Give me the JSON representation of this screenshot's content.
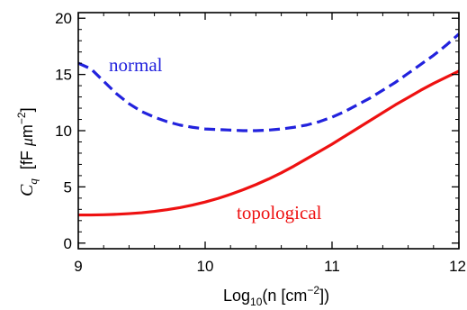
{
  "chart_data": {
    "type": "line",
    "xlabel": {
      "prefix": "Log",
      "subscript": "10",
      "middle": "(n [cm",
      "superscript": "−2",
      "suffix": "])"
    },
    "ylabel": {
      "symbol": "C",
      "symbol_sub": "q",
      "unit_prefix": "[fF ",
      "unit_mu": "μ",
      "unit_m": "m",
      "unit_sup": "−2",
      "unit_suffix": "]"
    },
    "xlim": [
      9,
      12
    ],
    "ylim": [
      -0.5,
      20.5
    ],
    "x_ticks": [
      9,
      10,
      11,
      12
    ],
    "x_tick_labels": [
      "9",
      "10",
      "11",
      "12"
    ],
    "y_ticks": [
      0,
      5,
      10,
      15,
      20
    ],
    "y_tick_labels": [
      "0",
      "5",
      "10",
      "15",
      "20"
    ],
    "grid": false,
    "legend": "none",
    "series": [
      {
        "name": "normal",
        "color": "#2222dd",
        "style": "dashed",
        "x": [
          9.0,
          9.1,
          9.2,
          9.3,
          9.4,
          9.5,
          9.6,
          9.7,
          9.8,
          9.9,
          10.0,
          10.1,
          10.2,
          10.3,
          10.4,
          10.5,
          10.6,
          10.7,
          10.8,
          10.9,
          11.0,
          11.1,
          11.2,
          11.3,
          11.4,
          11.5,
          11.6,
          11.7,
          11.8,
          11.9,
          12.0
        ],
        "y": [
          16.0,
          15.5,
          14.4,
          13.3,
          12.4,
          11.7,
          11.2,
          10.8,
          10.5,
          10.3,
          10.15,
          10.1,
          10.05,
          10.0,
          10.0,
          10.05,
          10.15,
          10.3,
          10.5,
          10.8,
          11.2,
          11.7,
          12.3,
          12.9,
          13.6,
          14.3,
          15.1,
          15.9,
          16.7,
          17.6,
          18.6
        ]
      },
      {
        "name": "topological",
        "color": "#ee1111",
        "style": "solid",
        "x": [
          9.0,
          9.1,
          9.2,
          9.3,
          9.4,
          9.5,
          9.6,
          9.7,
          9.8,
          9.9,
          10.0,
          10.1,
          10.2,
          10.3,
          10.4,
          10.5,
          10.6,
          10.7,
          10.8,
          10.9,
          11.0,
          11.1,
          11.2,
          11.3,
          11.4,
          11.5,
          11.6,
          11.7,
          11.8,
          11.9,
          12.0
        ],
        "y": [
          2.5,
          2.5,
          2.52,
          2.56,
          2.62,
          2.7,
          2.82,
          2.97,
          3.15,
          3.38,
          3.65,
          3.97,
          4.34,
          4.75,
          5.2,
          5.7,
          6.25,
          6.85,
          7.5,
          8.15,
          8.8,
          9.5,
          10.2,
          10.9,
          11.6,
          12.3,
          12.95,
          13.6,
          14.2,
          14.75,
          15.3
        ]
      }
    ],
    "annotations": [
      {
        "text": "normal",
        "color": "#2222dd"
      },
      {
        "text": "topological",
        "color": "#ee1111"
      }
    ]
  }
}
